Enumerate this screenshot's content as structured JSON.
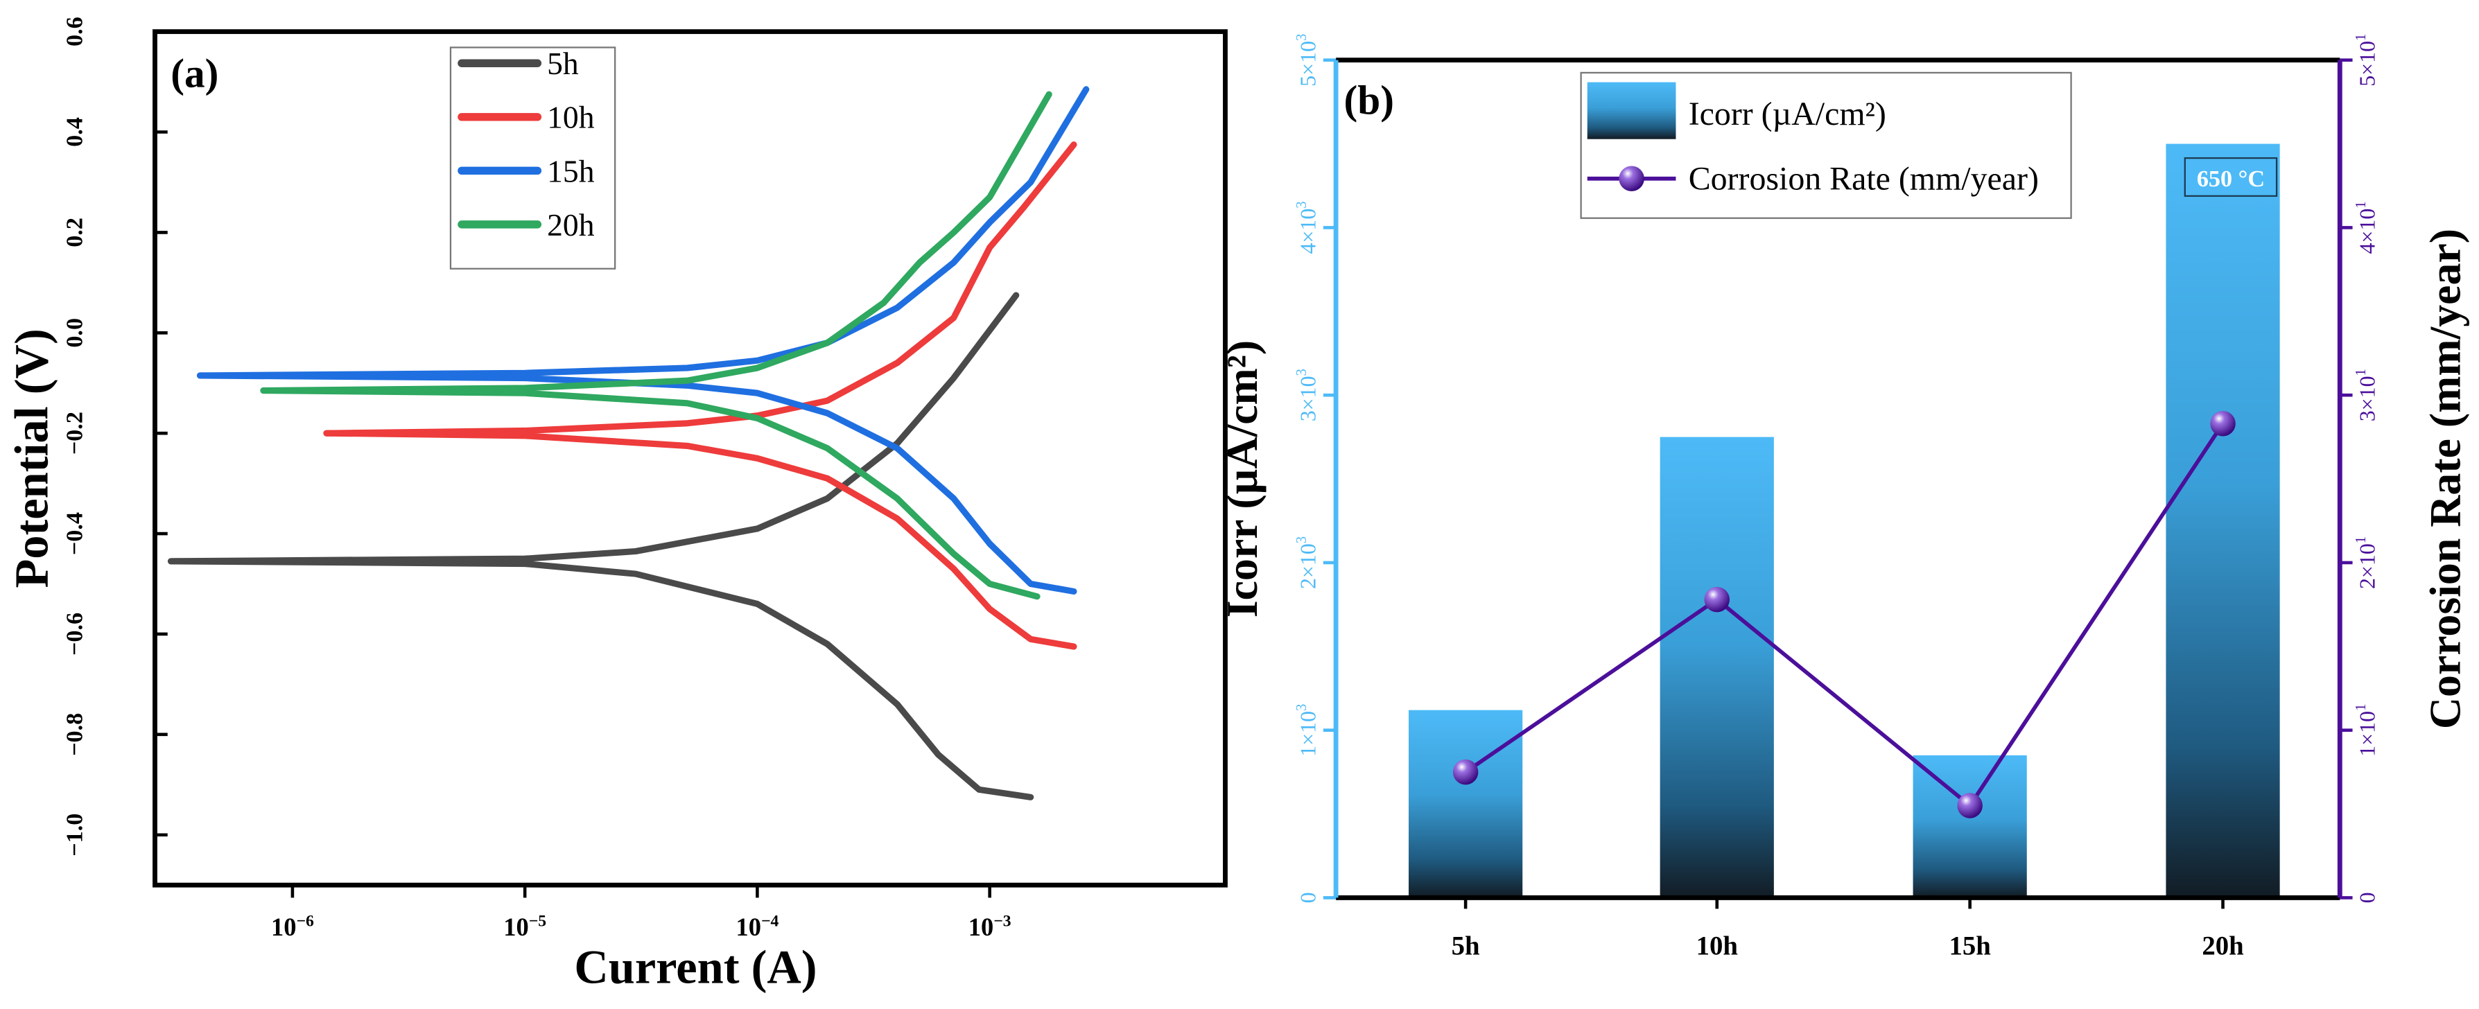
{
  "chart_data": [
    {
      "type": "line",
      "panel_label": "(a)",
      "xlabel": "Current (A)",
      "ylabel": "Potential (V)",
      "xscale": "log",
      "xlim": [
        2.5e-07,
        0.0105
      ],
      "ylim": [
        -1.1,
        0.6
      ],
      "yticks": [
        "0.6",
        "0.4",
        "0.2",
        "0.0",
        "−0.2",
        "−0.4",
        "−0.6",
        "−0.8",
        "−1.0"
      ],
      "ytick_values": [
        0.6,
        0.4,
        0.2,
        0.0,
        -0.2,
        -0.4,
        -0.6,
        -0.8,
        -1.0
      ],
      "xticks": [
        {
          "base": "10",
          "exp": "−6",
          "value": -6
        },
        {
          "base": "10",
          "exp": "−5",
          "value": -5
        },
        {
          "base": "10",
          "exp": "−4",
          "value": -4
        },
        {
          "base": "10",
          "exp": "−3",
          "value": -3
        }
      ],
      "legend_position": "top-center",
      "series": [
        {
          "name": "5h",
          "color": "#4a4a4a",
          "anodic": [
            [
              3e-07,
              -0.455
            ],
            [
              1e-05,
              -0.45
            ],
            [
              3e-05,
              -0.435
            ],
            [
              0.0001,
              -0.39
            ],
            [
              0.0002,
              -0.33
            ],
            [
              0.0004,
              -0.22
            ],
            [
              0.0007,
              -0.09
            ],
            [
              0.0013,
              0.075
            ]
          ],
          "cathodic": [
            [
              3e-07,
              -0.455
            ],
            [
              1e-05,
              -0.46
            ],
            [
              3e-05,
              -0.48
            ],
            [
              0.0001,
              -0.54
            ],
            [
              0.0002,
              -0.62
            ],
            [
              0.0004,
              -0.74
            ],
            [
              0.0006,
              -0.84
            ],
            [
              0.0009,
              -0.91
            ],
            [
              0.0015,
              -0.925
            ]
          ]
        },
        {
          "name": "10h",
          "color": "#ee3b3b",
          "anodic": [
            [
              1.4e-06,
              -0.2
            ],
            [
              1e-05,
              -0.195
            ],
            [
              5e-05,
              -0.18
            ],
            [
              0.0001,
              -0.165
            ],
            [
              0.0002,
              -0.135
            ],
            [
              0.0004,
              -0.06
            ],
            [
              0.0007,
              0.03
            ],
            [
              0.001,
              0.17
            ],
            [
              0.0014,
              0.25
            ],
            [
              0.0023,
              0.375
            ]
          ],
          "cathodic": [
            [
              1.4e-06,
              -0.2
            ],
            [
              1e-05,
              -0.205
            ],
            [
              5e-05,
              -0.225
            ],
            [
              0.0001,
              -0.25
            ],
            [
              0.0002,
              -0.29
            ],
            [
              0.0004,
              -0.37
            ],
            [
              0.0007,
              -0.47
            ],
            [
              0.001,
              -0.55
            ],
            [
              0.0015,
              -0.61
            ],
            [
              0.0023,
              -0.625
            ]
          ]
        },
        {
          "name": "15h",
          "color": "#1f6fe0",
          "anodic": [
            [
              4e-07,
              -0.085
            ],
            [
              1e-05,
              -0.08
            ],
            [
              5e-05,
              -0.07
            ],
            [
              0.0001,
              -0.055
            ],
            [
              0.0002,
              -0.02
            ],
            [
              0.0004,
              0.05
            ],
            [
              0.0007,
              0.14
            ],
            [
              0.001,
              0.22
            ],
            [
              0.0015,
              0.3
            ],
            [
              0.0026,
              0.485
            ]
          ],
          "cathodic": [
            [
              4e-07,
              -0.085
            ],
            [
              1e-05,
              -0.09
            ],
            [
              5e-05,
              -0.105
            ],
            [
              0.0001,
              -0.12
            ],
            [
              0.0002,
              -0.16
            ],
            [
              0.0004,
              -0.23
            ],
            [
              0.0007,
              -0.33
            ],
            [
              0.001,
              -0.42
            ],
            [
              0.0015,
              -0.5
            ],
            [
              0.0023,
              -0.515
            ]
          ]
        },
        {
          "name": "20h",
          "color": "#2fa860",
          "anodic": [
            [
              7.5e-07,
              -0.115
            ],
            [
              1e-05,
              -0.11
            ],
            [
              5e-05,
              -0.095
            ],
            [
              0.0001,
              -0.07
            ],
            [
              0.0002,
              -0.02
            ],
            [
              0.00035,
              0.06
            ],
            [
              0.0005,
              0.14
            ],
            [
              0.0007,
              0.2
            ],
            [
              0.001,
              0.27
            ],
            [
              0.0018,
              0.475
            ]
          ],
          "cathodic": [
            [
              7.5e-07,
              -0.115
            ],
            [
              1e-05,
              -0.12
            ],
            [
              5e-05,
              -0.14
            ],
            [
              0.0001,
              -0.17
            ],
            [
              0.0002,
              -0.23
            ],
            [
              0.0004,
              -0.33
            ],
            [
              0.0007,
              -0.44
            ],
            [
              0.001,
              -0.5
            ],
            [
              0.0016,
              -0.525
            ]
          ]
        }
      ]
    },
    {
      "type": "bar",
      "panel_label": "(b)",
      "annotation": "650 °C",
      "categories": [
        "5h",
        "10h",
        "15h",
        "20h"
      ],
      "ylabel_left": "Icorr (µA/cm²)",
      "ylabel_right": "Corrosion Rate (mm/year)",
      "ylim_left": [
        0,
        5000
      ],
      "ylim_right": [
        0,
        50
      ],
      "yticks_left": [
        {
          "base": "0",
          "exp": "",
          "value": 0
        },
        {
          "base": "1×10",
          "exp": "3",
          "value": 1000
        },
        {
          "base": "2×10",
          "exp": "3",
          "value": 2000
        },
        {
          "base": "3×10",
          "exp": "3",
          "value": 3000
        },
        {
          "base": "4×10",
          "exp": "3",
          "value": 4000
        },
        {
          "base": "5×10",
          "exp": "3",
          "value": 5000
        }
      ],
      "yticks_right": [
        {
          "base": "0",
          "exp": "",
          "value": 0
        },
        {
          "base": "1×10",
          "exp": "1",
          "value": 10
        },
        {
          "base": "2×10",
          "exp": "1",
          "value": 20
        },
        {
          "base": "3×10",
          "exp": "1",
          "value": 30
        },
        {
          "base": "4×10",
          "exp": "1",
          "value": 40
        },
        {
          "base": "5×10",
          "exp": "1",
          "value": 50
        }
      ],
      "legend_position": "top-center",
      "series": [
        {
          "name": "Icorr (µA/cm²)",
          "kind": "bar",
          "axis": "left",
          "color": "#4dbaf7",
          "values": [
            1120,
            2750,
            850,
            4500
          ]
        },
        {
          "name": "Corrosion Rate (mm/year)",
          "kind": "line",
          "axis": "right",
          "color": "#4b0f9a",
          "values": [
            7.5,
            17.8,
            5.5,
            28.3
          ]
        }
      ],
      "left_axis_color": "#4dbaf7",
      "right_axis_color": "#4b0f9a"
    }
  ]
}
